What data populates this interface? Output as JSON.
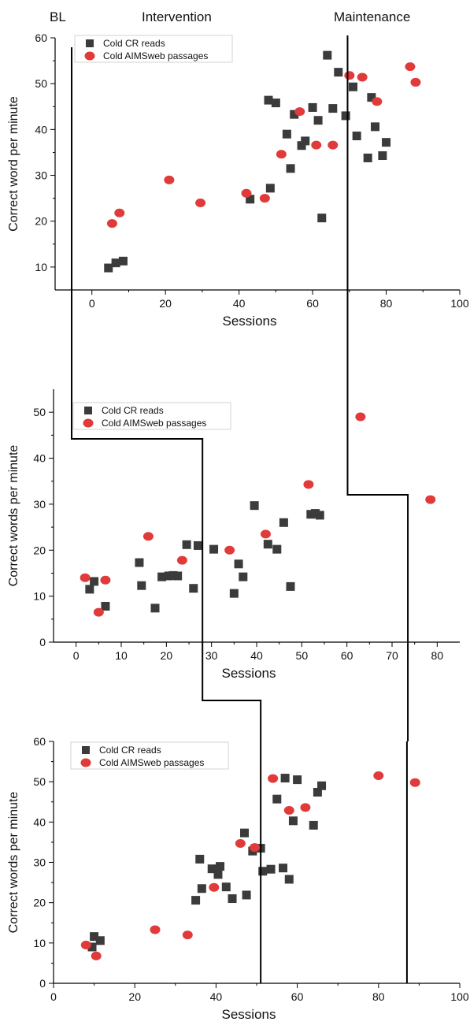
{
  "phase_labels": {
    "baseline": "BL",
    "intervention": "Intervention",
    "maintenance": "Maintenance"
  },
  "colors": {
    "cr": "#3b3b3b",
    "aims": "#e03a3a",
    "axis": "#000000",
    "phase_line": "#000000"
  },
  "markers": {
    "cr": "square",
    "aims": "circle"
  },
  "chart_data": [
    {
      "type": "scatter",
      "title": "",
      "xlabel": "Sessions",
      "ylabel": "Correct word per minute",
      "xlim": [
        -10,
        100
      ],
      "ylim": [
        5,
        60
      ],
      "xticks": [
        0,
        20,
        40,
        60,
        80,
        100
      ],
      "yticks": [
        10,
        20,
        30,
        40,
        50,
        60
      ],
      "grid": false,
      "legend": "top-left",
      "series": [
        {
          "name": "Cold CR reads",
          "marker": "square",
          "points": [
            [
              4.5,
              9.8
            ],
            [
              6.5,
              10.9
            ],
            [
              8.5,
              11.3
            ],
            [
              43,
              24.8
            ],
            [
              48,
              46.4
            ],
            [
              48.5,
              27.2
            ],
            [
              50,
              45.8
            ],
            [
              53,
              39
            ],
            [
              54,
              31.5
            ],
            [
              55,
              43.3
            ],
            [
              57,
              36.5
            ],
            [
              58,
              37.5
            ],
            [
              60,
              44.8
            ],
            [
              61.5,
              42
            ],
            [
              62.5,
              20.7
            ],
            [
              64,
              56.2
            ],
            [
              65.5,
              44.6
            ],
            [
              67,
              52.5
            ],
            [
              69,
              43
            ],
            [
              71,
              49.3
            ],
            [
              72,
              38.6
            ],
            [
              75,
              33.8
            ],
            [
              76,
              47
            ],
            [
              77,
              40.6
            ],
            [
              79,
              34.3
            ],
            [
              80,
              37.2
            ]
          ]
        },
        {
          "name": "Cold AIMSweb passages",
          "marker": "circle",
          "points": [
            [
              5.5,
              19.5
            ],
            [
              7.5,
              21.8
            ],
            [
              21,
              29
            ],
            [
              29.5,
              24
            ],
            [
              42,
              26.1
            ],
            [
              47,
              25
            ],
            [
              51.5,
              34.6
            ],
            [
              56.5,
              43.9
            ],
            [
              61,
              36.6
            ],
            [
              65.5,
              36.6
            ],
            [
              70,
              51.8
            ],
            [
              73.5,
              51.4
            ],
            [
              77.5,
              46.1
            ],
            [
              86.5,
              53.7
            ],
            [
              88,
              50.3
            ]
          ]
        }
      ],
      "phase_changes": [
        {
          "after": "baseline",
          "x": -5.5
        },
        {
          "after": "intervention",
          "x": 69.5
        }
      ]
    },
    {
      "type": "scatter",
      "title": "",
      "xlabel": "Sessions",
      "ylabel": "Correct words per minute",
      "xlim": [
        -5,
        85
      ],
      "ylim": [
        0,
        55
      ],
      "xticks": [
        0,
        10,
        20,
        30,
        40,
        50,
        60,
        70,
        80
      ],
      "yticks": [
        0,
        10,
        20,
        30,
        40,
        50
      ],
      "grid": false,
      "legend": "top-left",
      "series": [
        {
          "name": "Cold CR reads",
          "marker": "square",
          "points": [
            [
              3,
              11.5
            ],
            [
              4,
              13.2
            ],
            [
              6.5,
              7.8
            ],
            [
              14,
              17.3
            ],
            [
              14.5,
              12.3
            ],
            [
              17.5,
              7.4
            ],
            [
              19,
              14.2
            ],
            [
              20.5,
              14.4
            ],
            [
              21.5,
              14.5
            ],
            [
              22.5,
              14.4
            ],
            [
              24.5,
              21.2
            ],
            [
              26,
              11.7
            ],
            [
              27,
              21
            ],
            [
              30.5,
              20.2
            ],
            [
              35,
              10.6
            ],
            [
              36,
              17
            ],
            [
              37,
              14.2
            ],
            [
              39.5,
              29.7
            ],
            [
              42.5,
              21.3
            ],
            [
              44.5,
              20.2
            ],
            [
              46,
              26
            ],
            [
              47.5,
              12.1
            ],
            [
              52,
              27.8
            ],
            [
              53,
              28
            ],
            [
              54,
              27.6
            ]
          ]
        },
        {
          "name": "Cold AIMSweb passages",
          "marker": "circle",
          "points": [
            [
              2,
              14
            ],
            [
              5,
              6.5
            ],
            [
              6.5,
              13.5
            ],
            [
              16,
              23
            ],
            [
              23.5,
              17.8
            ],
            [
              34,
              20
            ],
            [
              42,
              23.5
            ],
            [
              51.5,
              34.3
            ],
            [
              63,
              49
            ],
            [
              78.5,
              31
            ]
          ]
        }
      ],
      "phase_changes": [
        {
          "after": "baseline",
          "x": 28
        },
        {
          "after": "intervention",
          "x": 73.5
        }
      ]
    },
    {
      "type": "scatter",
      "title": "",
      "xlabel": "Sessions",
      "ylabel": "Correct words per minute",
      "xlim": [
        0,
        100
      ],
      "ylim": [
        0,
        60
      ],
      "xticks": [
        0,
        20,
        40,
        60,
        80,
        100
      ],
      "yticks": [
        0,
        10,
        20,
        30,
        40,
        50,
        60
      ],
      "grid": false,
      "legend": "top-left",
      "series": [
        {
          "name": "Cold CR reads",
          "marker": "square",
          "points": [
            [
              9.5,
              9
            ],
            [
              10,
              11.6
            ],
            [
              11.5,
              10.6
            ],
            [
              35,
              20.6
            ],
            [
              36,
              30.8
            ],
            [
              36.5,
              23.5
            ],
            [
              39,
              28.4
            ],
            [
              40.5,
              27
            ],
            [
              41,
              29
            ],
            [
              42.5,
              23.9
            ],
            [
              44,
              21
            ],
            [
              47,
              37.3
            ],
            [
              47.5,
              21.9
            ],
            [
              49,
              32.8
            ],
            [
              51,
              33.5
            ],
            [
              51.5,
              27.8
            ],
            [
              53.5,
              28.3
            ],
            [
              55,
              45.7
            ],
            [
              56.5,
              28.6
            ],
            [
              57,
              50.9
            ],
            [
              58,
              25.8
            ],
            [
              59,
              40.3
            ],
            [
              60,
              50.5
            ],
            [
              64,
              39.2
            ],
            [
              65,
              47.4
            ],
            [
              66,
              49
            ]
          ]
        },
        {
          "name": "Cold AIMSweb passages",
          "marker": "circle",
          "points": [
            [
              8,
              9.5
            ],
            [
              10.5,
              6.8
            ],
            [
              25,
              13.3
            ],
            [
              33,
              12
            ],
            [
              39.5,
              23.8
            ],
            [
              46,
              34.7
            ],
            [
              49.5,
              33.7
            ],
            [
              54,
              50.8
            ],
            [
              58,
              42.9
            ],
            [
              62,
              43.6
            ],
            [
              80,
              51.5
            ],
            [
              89,
              49.8
            ]
          ]
        }
      ],
      "phase_changes": [
        {
          "after": "baseline",
          "x": 51
        },
        {
          "after": "intervention",
          "x": 87
        }
      ]
    }
  ]
}
